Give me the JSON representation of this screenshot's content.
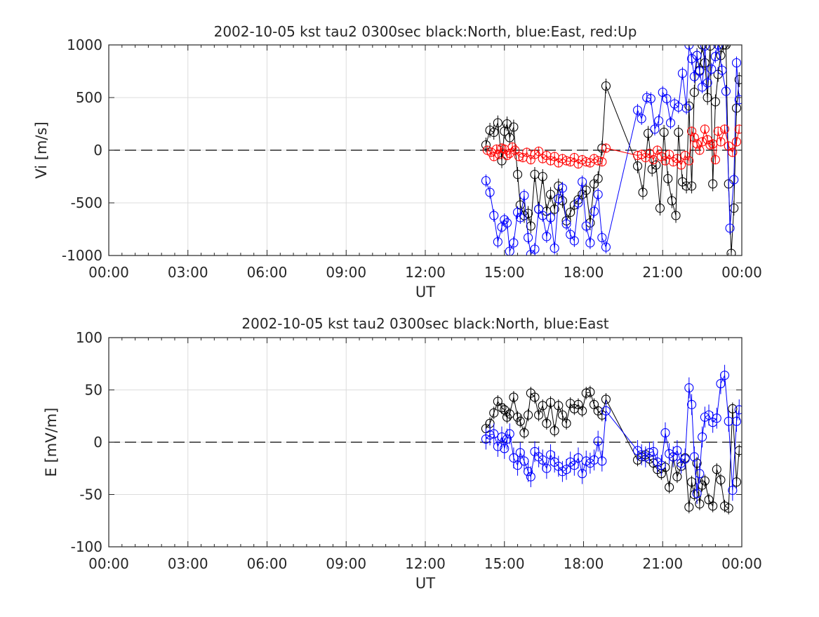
{
  "figure": {
    "background": "#ffffff"
  },
  "colors": {
    "north": "#000000",
    "east": "#0000ff",
    "up": "#ff0000",
    "grid": "#dcdcdc",
    "axis": "#262626",
    "zero_line": "#000000"
  },
  "chart_data": [
    {
      "type": "line",
      "title": "2002-10-05 kst tau2 0300sec black:North, blue:East, red:Up",
      "xlabel": "UT",
      "ylabel": "Vi [m/s]",
      "xlim": [
        0,
        24
      ],
      "ylim": [
        -1000,
        1000
      ],
      "x_ticks": [
        0,
        3,
        6,
        9,
        12,
        15,
        18,
        21,
        24
      ],
      "x_tick_labels": [
        "00:00",
        "03:00",
        "06:00",
        "09:00",
        "12:00",
        "15:00",
        "18:00",
        "21:00",
        "00:00"
      ],
      "y_ticks": [
        -1000,
        -500,
        0,
        500,
        1000
      ],
      "y_tick_labels": [
        "-1000",
        "-500",
        "0",
        "500",
        "1000"
      ],
      "grid": true,
      "zero_line": "dashed",
      "marker": "open-circle",
      "series": [
        {
          "color": "north",
          "error_bar": 70,
          "x": [
            14.3,
            14.45,
            14.6,
            14.75,
            14.9,
            15.0,
            15.1,
            15.2,
            15.35,
            15.5,
            15.6,
            15.75,
            15.9,
            16.0,
            16.15,
            16.3,
            16.45,
            16.6,
            16.75,
            16.9,
            17.05,
            17.2,
            17.35,
            17.5,
            17.65,
            17.8,
            17.95,
            18.1,
            18.25,
            18.4,
            18.55,
            18.7,
            18.85,
            20.05,
            20.25,
            20.45,
            20.6,
            20.75,
            20.9,
            21.05,
            21.2,
            21.35,
            21.5,
            21.6,
            21.75,
            21.9,
            22.0,
            22.1,
            22.2,
            22.3,
            22.4,
            22.5,
            22.6,
            22.7,
            22.8,
            22.9,
            23.0,
            23.1,
            23.2,
            23.3,
            23.4,
            23.5,
            23.6,
            23.7,
            23.8,
            23.9
          ],
          "y": [
            50,
            190,
            170,
            260,
            -100,
            180,
            250,
            120,
            220,
            -230,
            -520,
            -620,
            -600,
            -720,
            -230,
            -560,
            -250,
            -580,
            -420,
            -560,
            -340,
            -480,
            -670,
            -590,
            -520,
            -470,
            -420,
            -380,
            -690,
            -320,
            -270,
            20,
            610,
            -150,
            -400,
            160,
            -180,
            -140,
            -550,
            170,
            -270,
            -480,
            -620,
            170,
            -300,
            -340,
            420,
            -340,
            550,
            900,
            760,
            1000,
            830,
            500,
            990,
            -320,
            460,
            720,
            900,
            1000,
            1000,
            -320,
            -980,
            -550,
            400,
            670
          ]
        },
        {
          "color": "east",
          "error_bar": 60,
          "x": [
            14.3,
            14.45,
            14.6,
            14.75,
            14.9,
            15.0,
            15.1,
            15.2,
            15.35,
            15.5,
            15.6,
            15.75,
            15.9,
            16.0,
            16.15,
            16.3,
            16.45,
            16.6,
            16.75,
            16.9,
            17.05,
            17.2,
            17.35,
            17.5,
            17.65,
            17.8,
            17.95,
            18.1,
            18.25,
            18.4,
            18.55,
            18.7,
            18.85,
            20.05,
            20.2,
            20.4,
            20.55,
            20.7,
            20.85,
            21.0,
            21.15,
            21.3,
            21.45,
            21.6,
            21.75,
            21.9,
            22.0,
            22.1,
            22.2,
            22.3,
            22.4,
            22.5,
            22.6,
            22.7,
            22.85,
            23.0,
            23.1,
            23.25,
            23.4,
            23.55,
            23.7,
            23.8,
            23.9
          ],
          "y": [
            -290,
            -400,
            -620,
            -870,
            -730,
            -660,
            -690,
            -960,
            -880,
            -590,
            -640,
            -430,
            -830,
            -990,
            -940,
            -560,
            -620,
            -820,
            -640,
            -930,
            -460,
            -360,
            -700,
            -800,
            -860,
            -500,
            -300,
            -720,
            -880,
            -580,
            -420,
            -830,
            -920,
            380,
            300,
            500,
            490,
            200,
            280,
            550,
            490,
            260,
            440,
            410,
            730,
            400,
            1000,
            870,
            700,
            900,
            750,
            600,
            990,
            640,
            770,
            890,
            1000,
            760,
            560,
            -740,
            -280,
            830,
            480
          ]
        },
        {
          "color": "up",
          "error_bar": 45,
          "x": [
            14.35,
            14.5,
            14.6,
            14.7,
            14.8,
            14.9,
            15.0,
            15.1,
            15.2,
            15.3,
            15.4,
            15.55,
            15.7,
            15.85,
            16.0,
            16.15,
            16.3,
            16.45,
            16.6,
            16.75,
            16.9,
            17.05,
            17.2,
            17.35,
            17.5,
            17.65,
            17.8,
            17.95,
            18.1,
            18.25,
            18.4,
            18.55,
            18.7,
            18.85,
            20.05,
            20.2,
            20.35,
            20.5,
            20.65,
            20.8,
            20.95,
            21.1,
            21.25,
            21.4,
            21.55,
            21.7,
            21.85,
            22.0,
            22.1,
            22.2,
            22.3,
            22.4,
            22.5,
            22.6,
            22.7,
            22.8,
            22.9,
            23.0,
            23.1,
            23.2,
            23.35,
            23.5,
            23.65,
            23.8,
            23.9
          ],
          "y": [
            0,
            -20,
            -60,
            10,
            -40,
            20,
            10,
            -50,
            -30,
            30,
            0,
            -60,
            -70,
            -20,
            -90,
            -40,
            -10,
            -80,
            -50,
            -100,
            -60,
            -120,
            -80,
            -100,
            -110,
            -70,
            -130,
            -90,
            -110,
            -120,
            -80,
            -100,
            -110,
            20,
            -50,
            -40,
            -70,
            -30,
            -90,
            0,
            -60,
            -100,
            -40,
            -110,
            -80,
            -140,
            -50,
            -100,
            180,
            120,
            60,
            0,
            80,
            200,
            100,
            50,
            60,
            -90,
            180,
            80,
            200,
            40,
            -20,
            80,
            200
          ]
        }
      ]
    },
    {
      "type": "line",
      "title": "2002-10-05 kst tau2 0300sec black:North, blue:East",
      "xlabel": "UT",
      "ylabel": "E [mV/m]",
      "xlim": [
        0,
        24
      ],
      "ylim": [
        -100,
        100
      ],
      "x_ticks": [
        0,
        3,
        6,
        9,
        12,
        15,
        18,
        21,
        24
      ],
      "x_tick_labels": [
        "00:00",
        "03:00",
        "06:00",
        "09:00",
        "12:00",
        "15:00",
        "18:00",
        "21:00",
        "00:00"
      ],
      "y_ticks": [
        -100,
        -50,
        0,
        50,
        100
      ],
      "y_tick_labels": [
        "-100",
        "-50",
        "0",
        "50",
        "100"
      ],
      "grid": true,
      "zero_line": "dashed",
      "marker": "open-circle",
      "series": [
        {
          "color": "north",
          "error_bar": 6,
          "x": [
            14.3,
            14.45,
            14.6,
            14.75,
            14.9,
            15.0,
            15.1,
            15.2,
            15.35,
            15.5,
            15.6,
            15.75,
            15.9,
            16.0,
            16.15,
            16.3,
            16.45,
            16.6,
            16.75,
            16.9,
            17.05,
            17.2,
            17.35,
            17.5,
            17.65,
            17.8,
            17.95,
            18.1,
            18.25,
            18.4,
            18.55,
            18.7,
            18.85,
            20.05,
            20.2,
            20.35,
            20.5,
            20.65,
            20.8,
            20.95,
            21.1,
            21.25,
            21.4,
            21.55,
            21.7,
            21.85,
            22.0,
            22.1,
            22.2,
            22.3,
            22.4,
            22.5,
            22.6,
            22.75,
            22.9,
            23.05,
            23.2,
            23.35,
            23.5,
            23.65,
            23.8,
            23.9
          ],
          "y": [
            13,
            18,
            28,
            39,
            33,
            31,
            24,
            27,
            43,
            24,
            20,
            9,
            26,
            47,
            43,
            26,
            35,
            18,
            38,
            11,
            35,
            26,
            18,
            37,
            32,
            36,
            30,
            47,
            48,
            36,
            30,
            26,
            41,
            -17,
            -14,
            -12,
            -16,
            -20,
            -26,
            -30,
            -24,
            -43,
            -14,
            -33,
            -23,
            -15,
            -62,
            -38,
            -50,
            -20,
            -59,
            -41,
            -37,
            -55,
            -61,
            -26,
            -36,
            -61,
            -63,
            32,
            -38,
            -8
          ]
        },
        {
          "color": "east",
          "error_bar": 10,
          "x": [
            14.3,
            14.45,
            14.6,
            14.75,
            14.9,
            15.0,
            15.1,
            15.2,
            15.35,
            15.5,
            15.6,
            15.75,
            15.9,
            16.0,
            16.15,
            16.3,
            16.45,
            16.6,
            16.75,
            16.9,
            17.05,
            17.2,
            17.35,
            17.5,
            17.65,
            17.8,
            17.95,
            18.1,
            18.25,
            18.4,
            18.55,
            18.7,
            18.85,
            20.05,
            20.2,
            20.35,
            20.5,
            20.65,
            20.8,
            20.95,
            21.1,
            21.25,
            21.4,
            21.55,
            21.7,
            21.85,
            22.0,
            22.1,
            22.2,
            22.3,
            22.4,
            22.5,
            22.6,
            22.75,
            22.9,
            23.05,
            23.2,
            23.35,
            23.5,
            23.65,
            23.8,
            23.9
          ],
          "y": [
            3,
            7,
            8,
            -4,
            5,
            -6,
            3,
            8,
            -15,
            -22,
            -10,
            -18,
            -28,
            -33,
            -9,
            -14,
            -17,
            -25,
            -12,
            -19,
            -23,
            -28,
            -26,
            -19,
            -22,
            -15,
            -30,
            -18,
            -20,
            -17,
            1,
            -18,
            30,
            -8,
            -12,
            -14,
            -10,
            -9,
            -19,
            -22,
            9,
            -11,
            -14,
            -8,
            -20,
            -16,
            52,
            36,
            -14,
            -49,
            -30,
            5,
            24,
            26,
            19,
            23,
            56,
            64,
            20,
            -46,
            20,
            31
          ]
        }
      ]
    }
  ]
}
